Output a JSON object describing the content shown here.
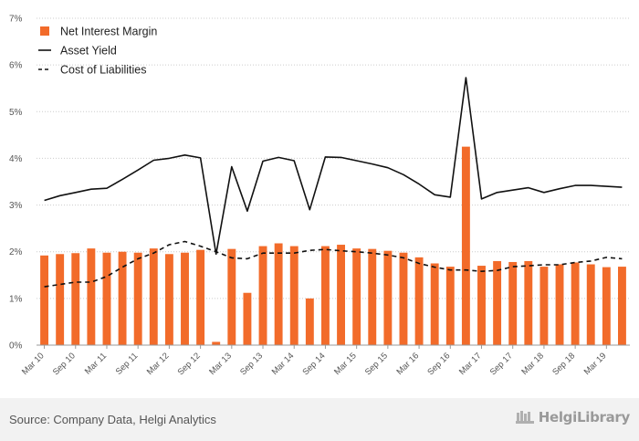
{
  "chart_data": {
    "type": "bar",
    "title": "",
    "xlabel": "",
    "ylabel": "",
    "ylim": [
      0,
      7
    ],
    "yticks": [
      "0%",
      "1%",
      "2%",
      "3%",
      "4%",
      "5%",
      "6%",
      "7%"
    ],
    "grid": "horizontal dotted",
    "legend_position": "top-left",
    "categories": [
      "Mar 10",
      "Jun 10",
      "Sep 10",
      "Dec 10",
      "Mar 11",
      "Jun 11",
      "Sep 11",
      "Dec 11",
      "Mar 12",
      "Jun 12",
      "Sep 12",
      "Dec 12",
      "Mar 13",
      "Jun 13",
      "Sep 13",
      "Dec 13",
      "Mar 14",
      "Jun 14",
      "Sep 14",
      "Dec 14",
      "Mar 15",
      "Jun 15",
      "Sep 15",
      "Dec 15",
      "Mar 16",
      "Jun 16",
      "Sep 16",
      "Dec 16",
      "Mar 17",
      "Jun 17",
      "Sep 17",
      "Dec 17",
      "Mar 18",
      "Jun 18",
      "Sep 18",
      "Dec 18",
      "Mar 19",
      "Jun 19"
    ],
    "labeled_ticks": [
      "Mar 10",
      "Sep 10",
      "Mar 11",
      "Sep 11",
      "Mar 12",
      "Sep 12",
      "Mar 13",
      "Sep 13",
      "Mar 14",
      "Sep 14",
      "Mar 15",
      "Sep 15",
      "Mar 16",
      "Sep 16",
      "Mar 17",
      "Sep 17",
      "Mar 18",
      "Sep 18",
      "Mar 19"
    ],
    "series": [
      {
        "name": "Net Interest Margin",
        "kind": "bar",
        "color": "#f26b2a",
        "values": [
          1.92,
          1.95,
          1.97,
          2.07,
          1.98,
          2.0,
          1.98,
          2.07,
          1.95,
          1.98,
          2.04,
          0.07,
          2.06,
          1.12,
          2.12,
          2.18,
          2.12,
          1.0,
          2.12,
          2.15,
          2.07,
          2.06,
          2.02,
          1.98,
          1.88,
          1.75,
          1.68,
          4.25,
          1.7,
          1.8,
          1.78,
          1.8,
          1.68,
          1.73,
          1.77,
          1.73,
          1.67,
          1.68
        ]
      },
      {
        "name": "Asset Yield",
        "kind": "line",
        "color": "#111111",
        "values": [
          3.1,
          3.2,
          3.27,
          3.34,
          3.36,
          3.55,
          3.75,
          3.96,
          4.0,
          4.07,
          4.01,
          1.95,
          3.82,
          2.87,
          3.94,
          4.02,
          3.95,
          2.9,
          4.03,
          4.02,
          3.95,
          3.88,
          3.8,
          3.65,
          3.45,
          3.22,
          3.17,
          5.73,
          3.13,
          3.27,
          3.32,
          3.37,
          3.27,
          3.35,
          3.42,
          3.42,
          3.4,
          3.38
        ]
      },
      {
        "name": "Cost of Liabilities",
        "kind": "dashed-line",
        "color": "#111111",
        "values": [
          1.25,
          1.3,
          1.35,
          1.35,
          1.47,
          1.67,
          1.85,
          1.97,
          2.15,
          2.22,
          2.12,
          2.0,
          1.87,
          1.85,
          1.97,
          1.97,
          1.97,
          2.03,
          2.05,
          2.02,
          2.0,
          1.97,
          1.93,
          1.87,
          1.75,
          1.67,
          1.61,
          1.61,
          1.58,
          1.6,
          1.68,
          1.7,
          1.72,
          1.72,
          1.77,
          1.8,
          1.88,
          1.85
        ]
      }
    ]
  },
  "footer": {
    "source": "Source: Company Data, Helgi Analytics",
    "brand": "HelgiLibrary"
  },
  "colors": {
    "bar": "#f26b2a",
    "line": "#111111",
    "grid": "#cccccc",
    "footer_bg": "#f2f2f2"
  }
}
